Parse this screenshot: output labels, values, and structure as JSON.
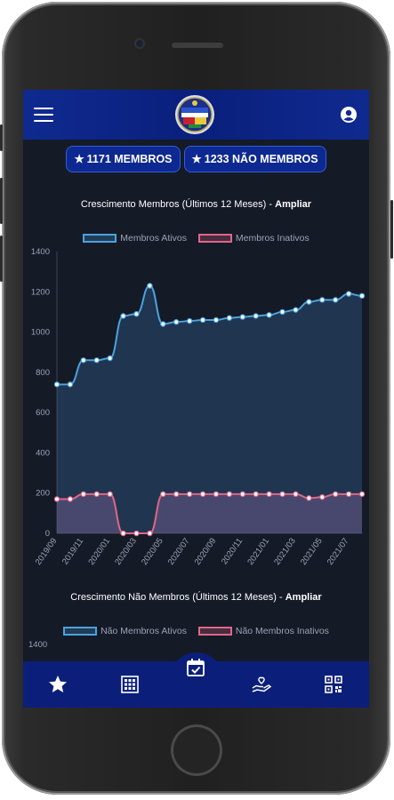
{
  "counts": {
    "members_label": "1171 MEMBROS",
    "non_members_label": "1233 NÃO MEMBROS"
  },
  "chart1": {
    "title_prefix": "Crescimento Membros (Últimos 12 Meses) - ",
    "title_link": "Ampliar",
    "legend_active": "Membros Ativos",
    "legend_inactive": "Membros Inativos"
  },
  "chart2": {
    "title_prefix": "Crescimento Não Membros (Últimos 12 Meses) - ",
    "title_link": "Ampliar",
    "legend_active": "Não Membros Ativos",
    "legend_inactive": "Não Membros Inativos",
    "first_tick": "1400"
  },
  "colors": {
    "active_line": "#4aa3df",
    "inactive_line": "#e06688",
    "appbar": "#0f2a8f",
    "background": "#151a27"
  },
  "icons": [
    "menu-icon",
    "logo-emblem",
    "user-icon",
    "star-icon",
    "calendar-grid-icon",
    "calendar-check-icon",
    "hand-heart-icon",
    "qr-code-icon"
  ],
  "chart_data": {
    "type": "area",
    "title": "Crescimento Membros (Últimos 12 Meses)",
    "xlabel": "",
    "ylabel": "",
    "ylim": [
      0,
      1400
    ],
    "yticks": [
      0,
      200,
      400,
      600,
      800,
      1000,
      1200,
      1400
    ],
    "legend_position": "top",
    "grid": false,
    "x_tick_labels": [
      "2019/09",
      "2019/11",
      "2020/01",
      "2020/03",
      "2020/05",
      "2020/07",
      "2020/09",
      "2020/11",
      "2021/01",
      "2021/03",
      "2021/05",
      "2021/07"
    ],
    "x": [
      "2019/09",
      "2019/10",
      "2019/11",
      "2019/12",
      "2020/01",
      "2020/02",
      "2020/03",
      "2020/04",
      "2020/05",
      "2020/06",
      "2020/07",
      "2020/08",
      "2020/09",
      "2020/10",
      "2020/11",
      "2020/12",
      "2021/01",
      "2021/02",
      "2021/03",
      "2021/04",
      "2021/05",
      "2021/06",
      "2021/07",
      "2021/08"
    ],
    "series": [
      {
        "name": "Membros Ativos",
        "values": [
          740,
          740,
          860,
          860,
          870,
          1080,
          1090,
          1230,
          1040,
          1050,
          1055,
          1060,
          1060,
          1070,
          1075,
          1080,
          1085,
          1100,
          1110,
          1150,
          1160,
          1160,
          1190,
          1180
        ]
      },
      {
        "name": "Membros Inativos",
        "values": [
          170,
          170,
          195,
          195,
          195,
          0,
          0,
          0,
          195,
          195,
          195,
          195,
          195,
          195,
          195,
          195,
          195,
          195,
          195,
          175,
          180,
          195,
          195,
          195
        ]
      }
    ]
  }
}
